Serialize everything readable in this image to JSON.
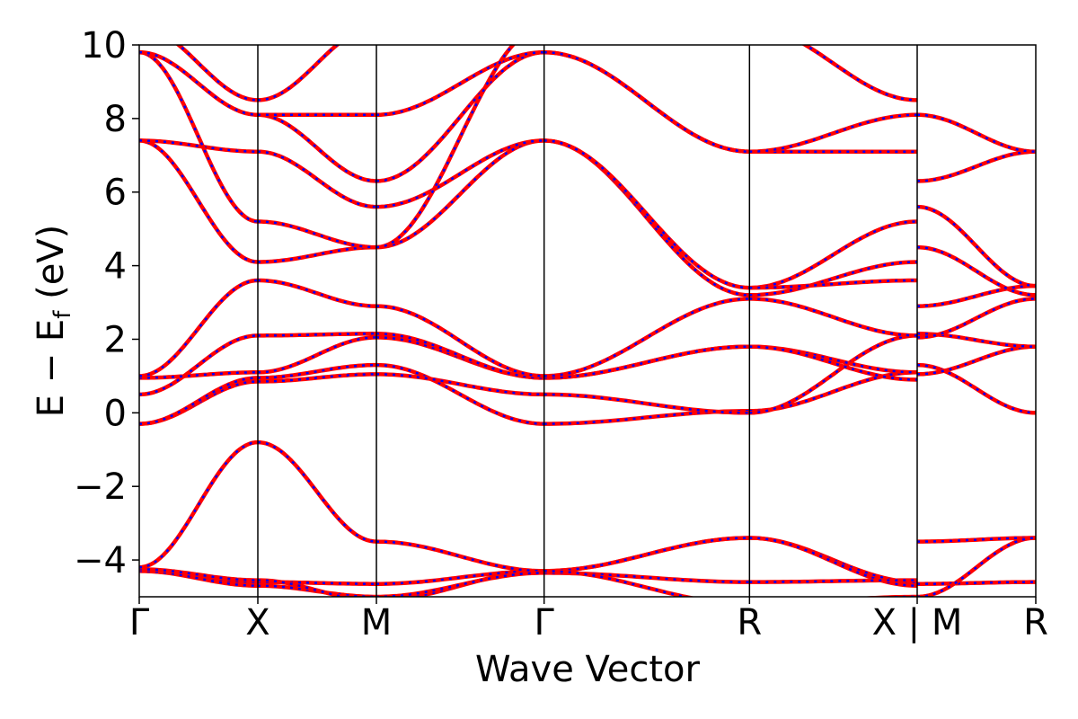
{
  "chart_data": {
    "type": "line",
    "title": "",
    "xlabel": "Wave Vector",
    "ylabel": "E − E",
    "ylabel_sub": "f",
    "ylabel_unit": " (eV)",
    "ylim": [
      -5,
      10
    ],
    "yticks": [
      {
        "value": -4,
        "label": "−4"
      },
      {
        "value": -2,
        "label": "−2"
      },
      {
        "value": 0,
        "label": "0"
      },
      {
        "value": 2,
        "label": "2"
      },
      {
        "value": 4,
        "label": "4"
      },
      {
        "value": 6,
        "label": "6"
      },
      {
        "value": 8,
        "label": "8"
      },
      {
        "value": 10,
        "label": "10"
      }
    ],
    "kpath": [
      {
        "label": "Γ",
        "x": 0.0
      },
      {
        "label": "X",
        "x": 1.0
      },
      {
        "label": "M",
        "x": 2.0
      },
      {
        "label": "Γ",
        "x": 3.414
      },
      {
        "label": "R",
        "x": 5.146
      },
      {
        "label": "X",
        "x": 6.56
      },
      {
        "label": "M",
        "x": 6.56
      },
      {
        "label": "R",
        "x": 7.56
      }
    ],
    "tick_labels_x": [
      "Γ",
      "X",
      "M",
      "Γ",
      "R",
      "X | M",
      "R"
    ],
    "grid": false,
    "legend": "none",
    "colors": {
      "series_a": "#ff0000",
      "series_b": "#0000ff",
      "kline": "#000000"
    },
    "series_style": {
      "series_a": "solid thick",
      "series_b": "dotted overlay"
    },
    "segments": [
      {
        "from": "Γ",
        "to": "X",
        "x0": 0.0,
        "x1": 1.0,
        "bands": [
          [
            -4.3,
            -4.6
          ],
          [
            -4.3,
            -4.7
          ],
          [
            -4.25,
            -4.55
          ],
          [
            -4.2,
            -0.8
          ],
          [
            -0.3,
            0.85
          ],
          [
            -0.3,
            0.95
          ],
          [
            0.5,
            2.1
          ],
          [
            0.95,
            1.1
          ],
          [
            1.0,
            3.6
          ],
          [
            7.4,
            4.1
          ],
          [
            7.4,
            7.1
          ],
          [
            9.8,
            5.2
          ],
          [
            9.8,
            8.1
          ],
          [
            10.5,
            8.5
          ]
        ]
      },
      {
        "from": "X",
        "to": "M",
        "x0": 1.0,
        "x1": 2.0,
        "bands": [
          [
            -4.6,
            -4.65
          ],
          [
            -4.7,
            -5.0
          ],
          [
            -4.55,
            -5.1
          ],
          [
            -0.8,
            -3.5
          ],
          [
            0.85,
            1.05
          ],
          [
            0.95,
            1.3
          ],
          [
            2.1,
            2.15
          ],
          [
            1.1,
            2.05
          ],
          [
            3.6,
            2.9
          ],
          [
            4.1,
            4.5
          ],
          [
            5.2,
            4.5
          ],
          [
            7.1,
            5.6
          ],
          [
            8.1,
            6.3
          ],
          [
            8.1,
            8.1
          ],
          [
            8.5,
            10.5
          ]
        ]
      },
      {
        "from": "M",
        "to": "Γ",
        "x0": 2.0,
        "x1": 3.414,
        "bands": [
          [
            -5.1,
            -4.3
          ],
          [
            -4.65,
            -4.3
          ],
          [
            -3.5,
            -4.3
          ],
          [
            -5.0,
            -4.35
          ],
          [
            1.3,
            -0.3
          ],
          [
            1.05,
            0.5
          ],
          [
            2.05,
            0.95
          ],
          [
            2.15,
            0.95
          ],
          [
            2.9,
            1.0
          ],
          [
            4.5,
            7.4
          ],
          [
            5.6,
            7.4
          ],
          [
            6.3,
            9.8
          ],
          [
            8.1,
            9.8
          ],
          [
            4.5,
            10.5
          ]
        ]
      },
      {
        "from": "Γ",
        "to": "R",
        "x0": 3.414,
        "x1": 5.146,
        "bands": [
          [
            -4.3,
            -3.4
          ],
          [
            -4.3,
            -3.4
          ],
          [
            -4.35,
            -4.6
          ],
          [
            -4.3,
            -5.2
          ],
          [
            -0.3,
            0.05
          ],
          [
            0.5,
            0.0
          ],
          [
            0.95,
            1.8
          ],
          [
            0.95,
            1.8
          ],
          [
            1.0,
            3.1
          ],
          [
            7.4,
            3.2
          ],
          [
            7.4,
            3.4
          ],
          [
            9.8,
            7.1
          ],
          [
            9.8,
            7.1
          ],
          [
            10.5,
            10.5
          ]
        ]
      },
      {
        "from": "R",
        "to": "X",
        "x0": 5.146,
        "x1": 6.56,
        "bands": [
          [
            -3.4,
            -4.6
          ],
          [
            -3.4,
            -4.7
          ],
          [
            -4.6,
            -4.55
          ],
          [
            -5.2,
            -5.0
          ],
          [
            0.05,
            1.1
          ],
          [
            0.0,
            2.1
          ],
          [
            1.8,
            1.1
          ],
          [
            1.8,
            0.9
          ],
          [
            3.1,
            2.1
          ],
          [
            3.2,
            4.1
          ],
          [
            3.4,
            5.2
          ],
          [
            3.4,
            3.6
          ],
          [
            7.1,
            7.1
          ],
          [
            7.1,
            8.1
          ],
          [
            10.5,
            8.5
          ]
        ]
      },
      {
        "from": "M",
        "to": "R",
        "x0": 6.56,
        "x1": 7.56,
        "bands": [
          [
            -3.5,
            -3.4
          ],
          [
            -4.65,
            -4.6
          ],
          [
            -5.0,
            -3.4
          ],
          [
            1.3,
            0.0
          ],
          [
            1.05,
            1.8
          ],
          [
            2.15,
            1.8
          ],
          [
            2.05,
            3.1
          ],
          [
            2.9,
            3.45
          ],
          [
            4.5,
            3.2
          ],
          [
            5.6,
            3.45
          ],
          [
            6.3,
            7.1
          ],
          [
            8.1,
            7.1
          ]
        ]
      }
    ]
  }
}
